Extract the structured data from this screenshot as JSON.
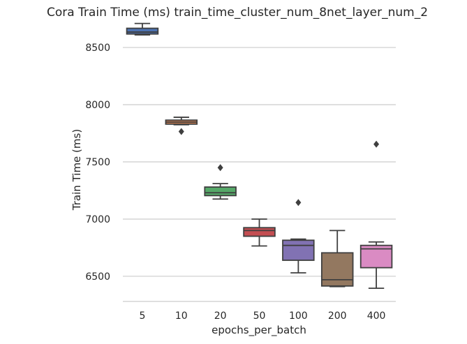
{
  "chart_data": {
    "type": "box",
    "title": "Cora Train Time (ms) train_time_cluster_num_8net_layer_num_2",
    "xlabel": "epochs_per_batch",
    "ylabel": "Train Time (ms)",
    "ylim": [
      6280,
      8720
    ],
    "yticks": [
      6500,
      7000,
      7500,
      8000,
      8500
    ],
    "grid": "horizontal",
    "categories": [
      "5",
      "10",
      "20",
      "50",
      "100",
      "200",
      "400"
    ],
    "boxes": [
      {
        "category": "5",
        "whisker_low": 8610,
        "q1": 8618,
        "median": 8635,
        "q3": 8668,
        "whisker_high": 8710,
        "outliers": [],
        "color": "#4c72b0"
      },
      {
        "category": "10",
        "whisker_low": 7825,
        "q1": 7830,
        "median": 7848,
        "q3": 7865,
        "whisker_high": 7890,
        "outliers": [
          7765
        ],
        "color": "#dd8452"
      },
      {
        "category": "20",
        "whisker_low": 7175,
        "q1": 7205,
        "median": 7230,
        "q3": 7280,
        "whisker_high": 7310,
        "outliers": [
          7450
        ],
        "color": "#55a868"
      },
      {
        "category": "50",
        "whisker_low": 6765,
        "q1": 6850,
        "median": 6900,
        "q3": 6925,
        "whisker_high": 7000,
        "outliers": [],
        "color": "#c44e52"
      },
      {
        "category": "100",
        "whisker_low": 6530,
        "q1": 6640,
        "median": 6770,
        "q3": 6815,
        "whisker_high": 6825,
        "outliers": [
          7145
        ],
        "color": "#8172b3"
      },
      {
        "category": "200",
        "whisker_low": 6410,
        "q1": 6415,
        "median": 6470,
        "q3": 6705,
        "whisker_high": 6900,
        "outliers": [],
        "color": "#937860"
      },
      {
        "category": "400",
        "whisker_low": 6395,
        "q1": 6575,
        "median": 6740,
        "q3": 6770,
        "whisker_high": 6800,
        "outliers": [
          7655
        ],
        "color": "#da8bc3"
      }
    ]
  }
}
